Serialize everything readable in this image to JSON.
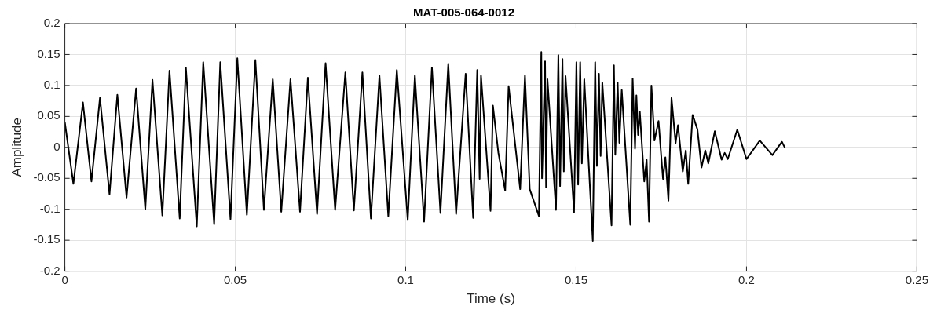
{
  "chart_data": {
    "type": "line",
    "title": "MAT-005-064-0012",
    "xlabel": "Time (s)",
    "ylabel": "Amplitude",
    "xlim": [
      0,
      0.25
    ],
    "xticks": [
      0,
      0.05,
      0.1,
      0.15,
      0.2,
      0.25
    ],
    "ylim": [
      -0.2,
      0.2
    ],
    "yticks": [
      -0.2,
      -0.15,
      -0.1,
      -0.05,
      0,
      0.05,
      0.1,
      0.15,
      0.2
    ],
    "grid": true,
    "legend": false,
    "marker": "none",
    "line_style": "solid",
    "series": [
      {
        "color": "#000000",
        "x": [
          0,
          0.0025,
          0.0053,
          0.0078,
          0.0103,
          0.0131,
          0.0154,
          0.0181,
          0.0209,
          0.0236,
          0.0257,
          0.0286,
          0.0307,
          0.0337,
          0.0355,
          0.0387,
          0.0406,
          0.0438,
          0.0456,
          0.0486,
          0.0506,
          0.0534,
          0.0559,
          0.0584,
          0.061,
          0.0635,
          0.0662,
          0.069,
          0.0713,
          0.074,
          0.0765,
          0.0793,
          0.0823,
          0.0848,
          0.0873,
          0.0898,
          0.0923,
          0.0949,
          0.0974,
          0.1006,
          0.1027,
          0.1054,
          0.1077,
          0.1102,
          0.1125,
          0.1148,
          0.1176,
          0.1198,
          0.121,
          0.1217,
          0.1221,
          0.1249,
          0.1256,
          0.1272,
          0.1292,
          0.1302,
          0.1336,
          0.135,
          0.1364,
          0.1391,
          0.1398,
          0.14,
          0.1409,
          0.1412,
          0.1416,
          0.1441,
          0.1448,
          0.1453,
          0.146,
          0.1464,
          0.1469,
          0.1494,
          0.1501,
          0.1506,
          0.1512,
          0.1517,
          0.1524,
          0.1549,
          0.1556,
          0.1561,
          0.1567,
          0.1572,
          0.1577,
          0.1604,
          0.1611,
          0.1615,
          0.1622,
          0.1627,
          0.1634,
          0.1659,
          0.1666,
          0.1673,
          0.1677,
          0.1682,
          0.1687,
          0.17,
          0.1707,
          0.1714,
          0.1721,
          0.173,
          0.1742,
          0.1755,
          0.1762,
          0.1771,
          0.178,
          0.1792,
          0.1799,
          0.1813,
          0.1822,
          0.1829,
          0.1842,
          0.1856,
          0.1868,
          0.1879,
          0.1888,
          0.1907,
          0.1927,
          0.1936,
          0.1945,
          0.1973,
          0.2,
          0.2039,
          0.2076,
          0.2104,
          0.2113
        ],
        "values": [
          0.04,
          -0.059,
          0.0725,
          -0.055,
          0.08,
          -0.076,
          0.085,
          -0.081,
          0.095,
          -0.1,
          0.109,
          -0.11,
          0.124,
          -0.115,
          0.129,
          -0.1275,
          0.1375,
          -0.124,
          0.1375,
          -0.116,
          0.144,
          -0.109,
          0.141,
          -0.101,
          0.11,
          -0.104,
          0.11,
          -0.104,
          0.1125,
          -0.1075,
          0.136,
          -0.101,
          0.121,
          -0.102,
          0.121,
          -0.115,
          0.116,
          -0.111,
          0.125,
          -0.1175,
          0.116,
          -0.12,
          0.129,
          -0.106,
          0.135,
          -0.1075,
          0.119,
          -0.114,
          0.125,
          -0.051,
          0.116,
          -0.1025,
          0.0675,
          -0.009,
          -0.07,
          0.099,
          -0.0675,
          0.116,
          -0.0675,
          -0.111,
          0.154,
          -0.05,
          0.139,
          -0.065,
          0.11,
          -0.101,
          0.149,
          -0.0625,
          0.1425,
          -0.039,
          0.115,
          -0.105,
          0.1375,
          -0.06,
          0.1375,
          -0.026,
          0.11,
          -0.151,
          0.1375,
          -0.03,
          0.119,
          -0.014,
          0.105,
          -0.126,
          0.1325,
          -0.012,
          0.105,
          0.0075,
          0.0925,
          -0.125,
          0.111,
          -0.002,
          0.084,
          0.02,
          0.0575,
          -0.055,
          -0.02,
          -0.12,
          0.1,
          0.011,
          0.0425,
          -0.051,
          -0.016,
          -0.086,
          0.08,
          0.007,
          0.036,
          -0.039,
          -0.005,
          -0.059,
          0.0525,
          0.029,
          -0.0325,
          -0.005,
          -0.026,
          0.026,
          -0.02,
          -0.009,
          -0.019,
          0.0285,
          -0.019,
          0.011,
          -0.0125,
          0.009,
          -0.001
        ]
      }
    ]
  }
}
